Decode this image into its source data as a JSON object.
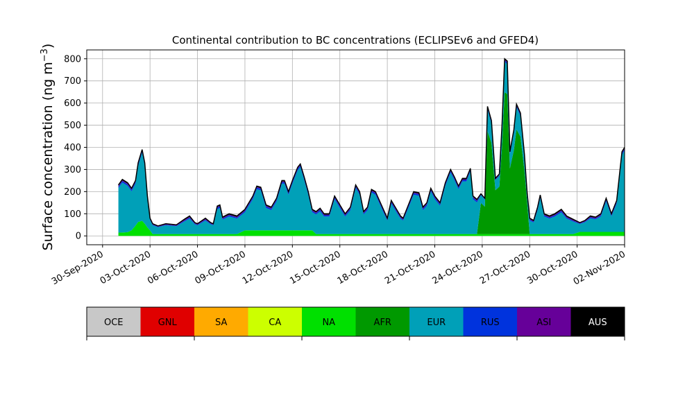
{
  "chart_data": {
    "type": "area",
    "title": "Continental contribution to BC concentrations (ECLIPSEv6 and GFED4)",
    "ylabel_main": "Surface concentration (ng m",
    "ylabel_sup": "−3",
    "ylabel_close": ")",
    "xlabel": "",
    "x_start": "2020-10-01",
    "x_end": "2020-10-31",
    "xlim": [
      "2020-09-29",
      "2020-11-02"
    ],
    "ylim": [
      -40,
      840
    ],
    "grid": true,
    "yticks": [
      0,
      100,
      200,
      300,
      400,
      500,
      600,
      700,
      800
    ],
    "xticks": [
      {
        "date": "2020-09-30",
        "label": "30-Sep-2020"
      },
      {
        "date": "2020-10-03",
        "label": "03-Oct-2020"
      },
      {
        "date": "2020-10-06",
        "label": "06-Oct-2020"
      },
      {
        "date": "2020-10-09",
        "label": "09-Oct-2020"
      },
      {
        "date": "2020-10-12",
        "label": "12-Oct-2020"
      },
      {
        "date": "2020-10-15",
        "label": "15-Oct-2020"
      },
      {
        "date": "2020-10-18",
        "label": "18-Oct-2020"
      },
      {
        "date": "2020-10-21",
        "label": "21-Oct-2020"
      },
      {
        "date": "2020-10-24",
        "label": "24-Oct-2020"
      },
      {
        "date": "2020-10-27",
        "label": "27-Oct-2020"
      },
      {
        "date": "2020-10-30",
        "label": "30-Oct-2020"
      },
      {
        "date": "2020-11-02",
        "label": "02-Nov-2020"
      }
    ],
    "total_profile": [
      [
        "2020-10-01",
        230
      ],
      [
        "2020-10-01 06:00",
        255
      ],
      [
        "2020-10-01 14:00",
        240
      ],
      [
        "2020-10-01 20:00",
        215
      ],
      [
        "2020-10-02 02:00",
        250
      ],
      [
        "2020-10-02 06:00",
        330
      ],
      [
        "2020-10-02 12:00",
        390
      ],
      [
        "2020-10-02 16:00",
        330
      ],
      [
        "2020-10-02 20:00",
        180
      ],
      [
        "2020-10-03 00:00",
        80
      ],
      [
        "2020-10-03 04:00",
        55
      ],
      [
        "2020-10-03 12:00",
        45
      ],
      [
        "2020-10-04 00:00",
        55
      ],
      [
        "2020-10-04 16:00",
        50
      ],
      [
        "2020-10-05 04:00",
        75
      ],
      [
        "2020-10-05 12:00",
        90
      ],
      [
        "2020-10-05 20:00",
        60
      ],
      [
        "2020-10-06 00:00",
        55
      ],
      [
        "2020-10-06 12:00",
        80
      ],
      [
        "2020-10-06 20:00",
        60
      ],
      [
        "2020-10-07 00:00",
        55
      ],
      [
        "2020-10-07 06:00",
        135
      ],
      [
        "2020-10-07 10:00",
        140
      ],
      [
        "2020-10-07 14:00",
        85
      ],
      [
        "2020-10-08 00:00",
        100
      ],
      [
        "2020-10-08 12:00",
        90
      ],
      [
        "2020-10-09 00:00",
        120
      ],
      [
        "2020-10-09 12:00",
        180
      ],
      [
        "2020-10-09 18:00",
        225
      ],
      [
        "2020-10-10 00:00",
        220
      ],
      [
        "2020-10-10 08:00",
        140
      ],
      [
        "2020-10-10 16:00",
        130
      ],
      [
        "2020-10-11 00:00",
        170
      ],
      [
        "2020-10-11 08:00",
        250
      ],
      [
        "2020-10-11 12:00",
        250
      ],
      [
        "2020-10-11 18:00",
        200
      ],
      [
        "2020-10-12 00:00",
        250
      ],
      [
        "2020-10-12 08:00",
        310
      ],
      [
        "2020-10-12 12:00",
        325
      ],
      [
        "2020-10-12 18:00",
        265
      ],
      [
        "2020-10-13 00:00",
        200
      ],
      [
        "2020-10-13 06:00",
        120
      ],
      [
        "2020-10-13 12:00",
        110
      ],
      [
        "2020-10-13 18:00",
        125
      ],
      [
        "2020-10-14 00:00",
        100
      ],
      [
        "2020-10-14 08:00",
        100
      ],
      [
        "2020-10-14 16:00",
        180
      ],
      [
        "2020-10-15 00:00",
        140
      ],
      [
        "2020-10-15 08:00",
        100
      ],
      [
        "2020-10-15 16:00",
        130
      ],
      [
        "2020-10-16 00:00",
        230
      ],
      [
        "2020-10-16 06:00",
        200
      ],
      [
        "2020-10-16 12:00",
        110
      ],
      [
        "2020-10-16 18:00",
        130
      ],
      [
        "2020-10-17 00:00",
        210
      ],
      [
        "2020-10-17 06:00",
        200
      ],
      [
        "2020-10-17 18:00",
        120
      ],
      [
        "2020-10-18 00:00",
        80
      ],
      [
        "2020-10-18 06:00",
        160
      ],
      [
        "2020-10-18 14:00",
        120
      ],
      [
        "2020-10-18 20:00",
        90
      ],
      [
        "2020-10-19 00:00",
        80
      ],
      [
        "2020-10-19 08:00",
        140
      ],
      [
        "2020-10-19 16:00",
        200
      ],
      [
        "2020-10-20 00:00",
        195
      ],
      [
        "2020-10-20 06:00",
        130
      ],
      [
        "2020-10-20 12:00",
        150
      ],
      [
        "2020-10-20 18:00",
        215
      ],
      [
        "2020-10-21 00:00",
        180
      ],
      [
        "2020-10-21 08:00",
        150
      ],
      [
        "2020-10-21 16:00",
        240
      ],
      [
        "2020-10-22 00:00",
        300
      ],
      [
        "2020-10-22 06:00",
        265
      ],
      [
        "2020-10-22 12:00",
        225
      ],
      [
        "2020-10-22 18:00",
        260
      ],
      [
        "2020-10-23 00:00",
        260
      ],
      [
        "2020-10-23 06:00",
        305
      ],
      [
        "2020-10-23 10:00",
        180
      ],
      [
        "2020-10-23 16:00",
        165
      ],
      [
        "2020-10-23 22:00",
        190
      ],
      [
        "2020-10-24 04:00",
        170
      ],
      [
        "2020-10-24 08:00",
        585
      ],
      [
        "2020-10-24 14:00",
        520
      ],
      [
        "2020-10-24 20:00",
        260
      ],
      [
        "2020-10-25 02:00",
        280
      ],
      [
        "2020-10-25 06:00",
        500
      ],
      [
        "2020-10-25 10:00",
        800
      ],
      [
        "2020-10-25 14:00",
        790
      ],
      [
        "2020-10-25 18:00",
        380
      ],
      [
        "2020-10-26 00:00",
        480
      ],
      [
        "2020-10-26 04:00",
        595
      ],
      [
        "2020-10-26 10:00",
        555
      ],
      [
        "2020-10-26 16:00",
        370
      ],
      [
        "2020-10-26 20:00",
        200
      ],
      [
        "2020-10-27 00:00",
        80
      ],
      [
        "2020-10-27 06:00",
        70
      ],
      [
        "2020-10-27 12:00",
        130
      ],
      [
        "2020-10-27 16:00",
        185
      ],
      [
        "2020-10-27 22:00",
        100
      ],
      [
        "2020-10-28 06:00",
        90
      ],
      [
        "2020-10-28 14:00",
        100
      ],
      [
        "2020-10-29 00:00",
        120
      ],
      [
        "2020-10-29 08:00",
        90
      ],
      [
        "2020-10-29 18:00",
        75
      ],
      [
        "2020-10-30 04:00",
        60
      ],
      [
        "2020-10-30 12:00",
        70
      ],
      [
        "2020-10-30 20:00",
        90
      ],
      [
        "2020-10-31 04:00",
        85
      ],
      [
        "2020-10-31 12:00",
        100
      ],
      [
        "2020-10-31 20:00",
        170
      ],
      [
        "2020-11-01 04:00",
        100
      ],
      [
        "2020-11-01 12:00",
        160
      ],
      [
        "2020-11-01 20:00",
        380
      ],
      [
        "2020-11-02 00:00",
        400
      ]
    ],
    "legend": [
      {
        "label": "OCE",
        "color": "#c8c8c8",
        "text_color": "#000000"
      },
      {
        "label": "GNL",
        "color": "#e00000",
        "text_color": "#000000"
      },
      {
        "label": "SA",
        "color": "#ffaa00",
        "text_color": "#000000"
      },
      {
        "label": "CA",
        "color": "#ccff00",
        "text_color": "#000000"
      },
      {
        "label": "NA",
        "color": "#00e000",
        "text_color": "#000000"
      },
      {
        "label": "AFR",
        "color": "#009900",
        "text_color": "#000000"
      },
      {
        "label": "EUR",
        "color": "#00a0b8",
        "text_color": "#000000"
      },
      {
        "label": "RUS",
        "color": "#0033dd",
        "text_color": "#000000"
      },
      {
        "label": "ASI",
        "color": "#660099",
        "text_color": "#000000"
      },
      {
        "label": "AUS",
        "color": "#000000",
        "text_color": "#ffffff"
      }
    ],
    "series": [
      {
        "name": "NA",
        "color": "#00e000"
      },
      {
        "name": "AFR",
        "color": "#009900"
      },
      {
        "name": "EUR",
        "color": "#00a0b8"
      },
      {
        "name": "RUS",
        "color": "#0033dd"
      },
      {
        "name": "ASI",
        "color": "#660099"
      },
      {
        "name": "AUS",
        "color": "#000000"
      }
    ]
  }
}
